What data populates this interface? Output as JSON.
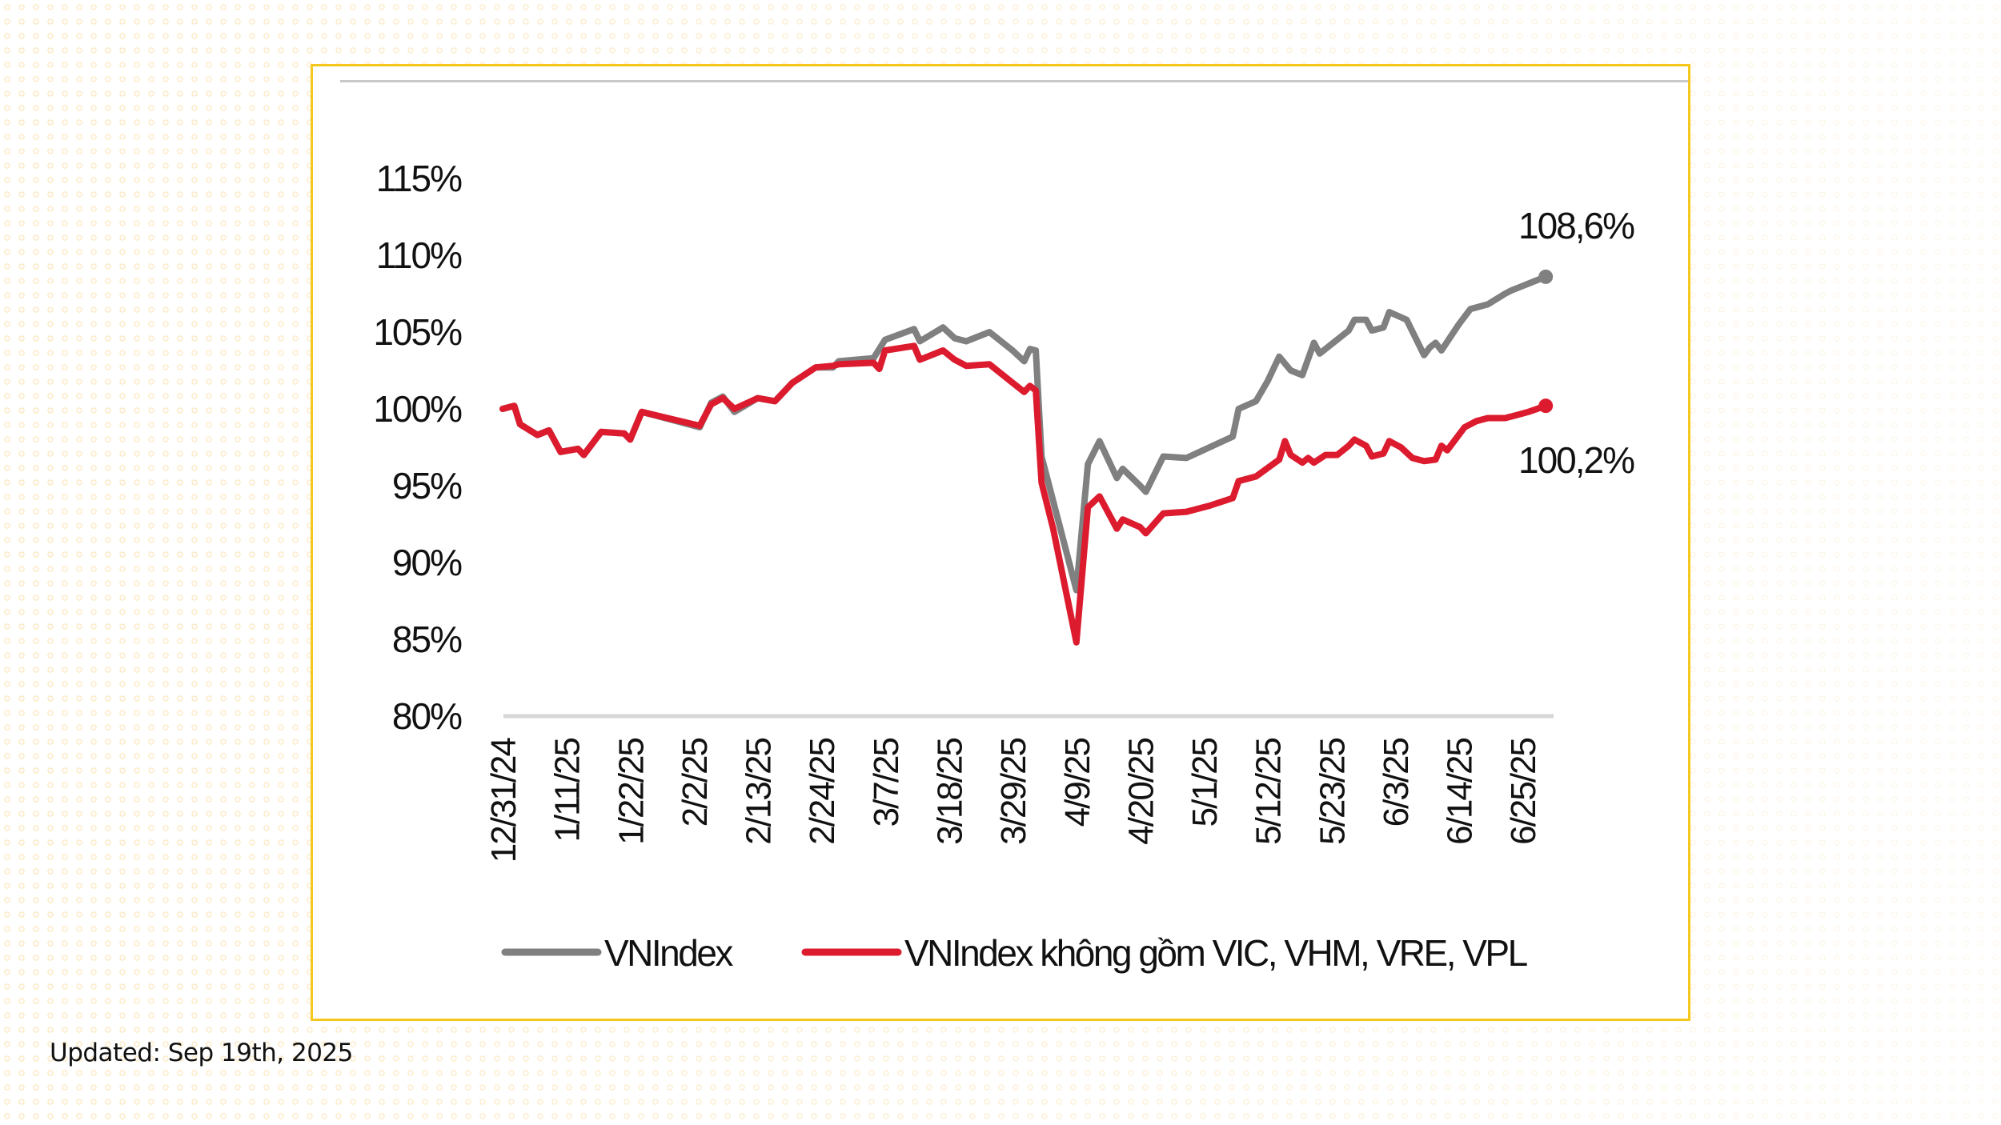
{
  "footer": {
    "updated_label": "Updated: Sep 19th, 2025"
  },
  "chart_data": {
    "type": "line",
    "title": "",
    "xlabel": "",
    "ylabel": "",
    "ylim": [
      80,
      115
    ],
    "y_ticks": [
      80,
      85,
      90,
      95,
      100,
      105,
      110,
      115
    ],
    "y_tick_labels": [
      "80%",
      "85%",
      "90%",
      "95%",
      "100%",
      "105%",
      "110%",
      "115%"
    ],
    "x_start_date": "12/31/24",
    "x_range_days": [
      0,
      182
    ],
    "x_ticks": [
      {
        "day": 0,
        "label": "12/31/24"
      },
      {
        "day": 11,
        "label": "1/11/25"
      },
      {
        "day": 22,
        "label": "1/22/25"
      },
      {
        "day": 33,
        "label": "2/2/25"
      },
      {
        "day": 44,
        "label": "2/13/25"
      },
      {
        "day": 55,
        "label": "2/24/25"
      },
      {
        "day": 66,
        "label": "3/7/25"
      },
      {
        "day": 77,
        "label": "3/18/25"
      },
      {
        "day": 88,
        "label": "3/29/25"
      },
      {
        "day": 99,
        "label": "4/9/25"
      },
      {
        "day": 110,
        "label": "4/20/25"
      },
      {
        "day": 121,
        "label": "5/1/25"
      },
      {
        "day": 132,
        "label": "5/12/25"
      },
      {
        "day": 143,
        "label": "5/23/25"
      },
      {
        "day": 154,
        "label": "6/3/25"
      },
      {
        "day": 165,
        "label": "6/14/25"
      },
      {
        "day": 176,
        "label": "6/25/25"
      }
    ],
    "grid": false,
    "legend_position": "bottom",
    "series": [
      {
        "name": "VNIndex",
        "color": "#808080",
        "end_label": "108,6%",
        "points": [
          [
            0,
            100.0
          ],
          [
            2,
            100.2
          ],
          [
            3,
            99.0
          ],
          [
            6,
            98.3
          ],
          [
            8,
            98.6
          ],
          [
            10,
            97.2
          ],
          [
            13,
            97.4
          ],
          [
            14,
            97.0
          ],
          [
            17,
            98.5
          ],
          [
            21,
            98.4
          ],
          [
            22,
            98.0
          ],
          [
            24,
            99.8
          ],
          [
            34,
            98.8
          ],
          [
            36,
            100.4
          ],
          [
            38,
            100.8
          ],
          [
            40,
            99.8
          ],
          [
            44,
            100.7
          ],
          [
            47,
            100.5
          ],
          [
            50,
            101.7
          ],
          [
            54,
            102.7
          ],
          [
            57,
            102.7
          ],
          [
            58,
            103.1
          ],
          [
            64,
            103.3
          ],
          [
            66,
            104.5
          ],
          [
            71,
            105.2
          ],
          [
            72,
            104.4
          ],
          [
            76,
            105.3
          ],
          [
            78,
            104.6
          ],
          [
            80,
            104.4
          ],
          [
            84,
            105.0
          ],
          [
            88,
            103.8
          ],
          [
            90,
            103.1
          ],
          [
            91,
            103.9
          ],
          [
            92,
            103.8
          ],
          [
            93,
            96.9
          ],
          [
            99,
            88.2
          ],
          [
            101,
            96.4
          ],
          [
            103,
            97.9
          ],
          [
            106,
            95.5
          ],
          [
            107,
            96.1
          ],
          [
            110,
            95.0
          ],
          [
            111,
            94.6
          ],
          [
            114,
            96.9
          ],
          [
            118,
            96.8
          ],
          [
            122,
            97.5
          ],
          [
            126,
            98.2
          ],
          [
            127,
            100.0
          ],
          [
            130,
            100.5
          ],
          [
            132,
            101.8
          ],
          [
            134,
            103.4
          ],
          [
            136,
            102.5
          ],
          [
            138,
            102.2
          ],
          [
            140,
            104.3
          ],
          [
            141,
            103.6
          ],
          [
            146,
            105.1
          ],
          [
            147,
            105.8
          ],
          [
            149,
            105.8
          ],
          [
            150,
            105.1
          ],
          [
            152,
            105.3
          ],
          [
            153,
            106.3
          ],
          [
            156,
            105.8
          ],
          [
            159,
            103.5
          ],
          [
            160,
            104.0
          ],
          [
            161,
            104.3
          ],
          [
            162,
            103.8
          ],
          [
            165,
            105.5
          ],
          [
            167,
            106.5
          ],
          [
            170,
            106.8
          ],
          [
            173,
            107.5
          ],
          [
            174,
            107.7
          ],
          [
            176,
            108.0
          ],
          [
            178,
            108.3
          ],
          [
            180,
            108.6
          ]
        ]
      },
      {
        "name": "VNIndex không gồm VIC, VHM, VRE, VPL",
        "color": "#dc1c2e",
        "end_label": "100,2%",
        "points": [
          [
            0,
            100.0
          ],
          [
            2,
            100.2
          ],
          [
            3,
            99.0
          ],
          [
            6,
            98.3
          ],
          [
            8,
            98.6
          ],
          [
            10,
            97.2
          ],
          [
            13,
            97.4
          ],
          [
            14,
            97.0
          ],
          [
            17,
            98.5
          ],
          [
            21,
            98.4
          ],
          [
            22,
            98.0
          ],
          [
            24,
            99.8
          ],
          [
            34,
            98.9
          ],
          [
            36,
            100.3
          ],
          [
            38,
            100.7
          ],
          [
            40,
            100.0
          ],
          [
            44,
            100.7
          ],
          [
            47,
            100.5
          ],
          [
            50,
            101.7
          ],
          [
            54,
            102.7
          ],
          [
            57,
            102.8
          ],
          [
            58,
            102.9
          ],
          [
            64,
            103.0
          ],
          [
            65,
            102.6
          ],
          [
            66,
            103.8
          ],
          [
            71,
            104.1
          ],
          [
            72,
            103.2
          ],
          [
            76,
            103.8
          ],
          [
            78,
            103.2
          ],
          [
            80,
            102.8
          ],
          [
            84,
            102.9
          ],
          [
            88,
            101.7
          ],
          [
            90,
            101.1
          ],
          [
            91,
            101.5
          ],
          [
            92,
            101.2
          ],
          [
            93,
            95.2
          ],
          [
            95,
            92.2
          ],
          [
            99,
            84.8
          ],
          [
            101,
            93.6
          ],
          [
            103,
            94.3
          ],
          [
            106,
            92.2
          ],
          [
            107,
            92.8
          ],
          [
            110,
            92.3
          ],
          [
            111,
            91.9
          ],
          [
            114,
            93.2
          ],
          [
            118,
            93.3
          ],
          [
            122,
            93.7
          ],
          [
            126,
            94.2
          ],
          [
            127,
            95.3
          ],
          [
            130,
            95.6
          ],
          [
            134,
            96.7
          ],
          [
            135,
            97.9
          ],
          [
            136,
            97.0
          ],
          [
            138,
            96.5
          ],
          [
            139,
            96.8
          ],
          [
            140,
            96.5
          ],
          [
            142,
            97.0
          ],
          [
            144,
            97.0
          ],
          [
            146,
            97.6
          ],
          [
            147,
            98.0
          ],
          [
            149,
            97.6
          ],
          [
            150,
            96.9
          ],
          [
            152,
            97.1
          ],
          [
            153,
            97.9
          ],
          [
            155,
            97.5
          ],
          [
            157,
            96.8
          ],
          [
            159,
            96.6
          ],
          [
            161,
            96.7
          ],
          [
            162,
            97.6
          ],
          [
            163,
            97.3
          ],
          [
            166,
            98.8
          ],
          [
            168,
            99.2
          ],
          [
            170,
            99.4
          ],
          [
            173,
            99.4
          ],
          [
            175,
            99.6
          ],
          [
            177,
            99.8
          ],
          [
            180,
            100.2
          ]
        ]
      }
    ]
  }
}
